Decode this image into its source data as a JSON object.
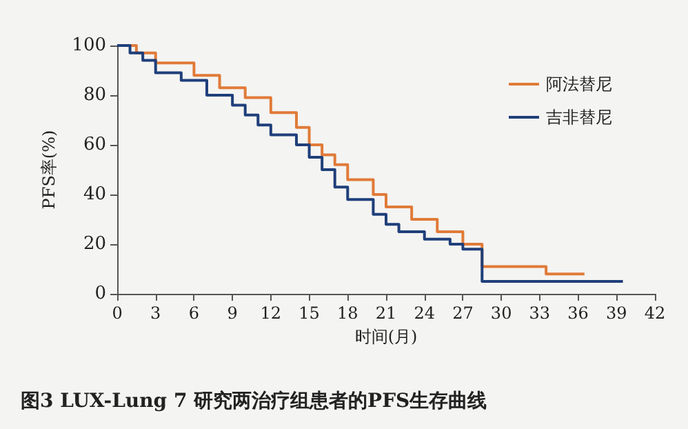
{
  "chart_data": {
    "type": "step",
    "title": "图3 LUX-Lung 7 研究两治疗组患者的PFS生存曲线",
    "xlabel": "时间(月)",
    "ylabel": "PFS率(%)",
    "xlim": [
      0,
      42
    ],
    "xticks": [
      0,
      3,
      6,
      9,
      12,
      15,
      18,
      21,
      24,
      27,
      30,
      33,
      36,
      39,
      42
    ],
    "ylim": [
      0,
      100
    ],
    "yticks": [
      0,
      20,
      40,
      60,
      80,
      100
    ],
    "grid": false,
    "legend": "top right",
    "marker": "none",
    "line_style": "solid",
    "series": [
      {
        "name": "阿法替尼",
        "color": "#e07b39",
        "x": [
          0,
          1.5,
          3,
          6,
          8,
          10,
          12,
          14,
          15,
          16,
          17,
          18,
          20,
          21,
          23,
          25,
          27,
          28.5,
          33.5,
          36.5
        ],
        "values": [
          100,
          97,
          93,
          88,
          83,
          79,
          73,
          67,
          60,
          56,
          52,
          46,
          40,
          35,
          30,
          25,
          20,
          11,
          8,
          8
        ]
      },
      {
        "name": "吉非替尼",
        "color": "#1f3f7a",
        "x": [
          0,
          1,
          2,
          3,
          5,
          7,
          9,
          10,
          11,
          12,
          14,
          15,
          16,
          17,
          18,
          20,
          21,
          22,
          24,
          26,
          27,
          28.5,
          39.5
        ],
        "values": [
          100,
          97,
          94,
          89,
          86,
          80,
          76,
          72,
          68,
          64,
          60,
          55,
          50,
          43,
          38,
          32,
          28,
          25,
          22,
          20,
          18,
          5,
          5
        ]
      }
    ]
  }
}
